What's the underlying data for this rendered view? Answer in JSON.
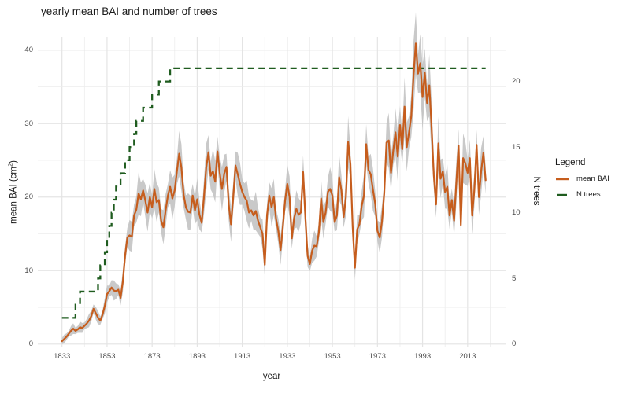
{
  "title": "yearly mean BAI and number of trees",
  "axes": {
    "x": {
      "label": "year",
      "tick_labels": [
        1833,
        1853,
        1873,
        1893,
        1913,
        1933,
        1953,
        1973,
        1993,
        2013
      ],
      "gridline_years": {
        "start": 1833,
        "end": 2023,
        "step": 10
      }
    },
    "y_left": {
      "label_prefix": "mean BAI (cm",
      "label_sup": "2",
      "label_suffix": ")",
      "tick_labels": [
        0,
        10,
        20,
        30,
        40
      ],
      "minor_gridlines": [
        5,
        15,
        25,
        35
      ]
    },
    "y_right": {
      "label": "N trees",
      "tick_labels": [
        0,
        5,
        10,
        15,
        20
      ]
    }
  },
  "legend": {
    "title": "Legend",
    "items": [
      {
        "label": "mean BAI",
        "color": "#C65D1D",
        "linestyle": "solid"
      },
      {
        "label": "N trees",
        "color": "#1F5C1F",
        "linestyle": "dashed"
      }
    ]
  },
  "colors": {
    "mean_bai_line": "#C65D1D",
    "n_trees_line": "#1F5C1F",
    "ribbon": "#BFBFBF",
    "grid_major": "#E4E4E4",
    "grid_minor": "#EDEDED",
    "tick_text": "#4d4d4d",
    "title_text": "#1a1a1a",
    "background": "#ffffff"
  },
  "chart_data": {
    "type": "line",
    "title": "yearly mean BAI and number of trees",
    "xlabel": "year",
    "ylabel_left": "mean BAI (cm2)",
    "ylabel_right": "N trees",
    "xlim": [
      1833,
      2021
    ],
    "ylim_left": [
      0,
      41
    ],
    "ylim_right": [
      0,
      21
    ],
    "grid": true,
    "legend_position": "right",
    "series": [
      {
        "name": "mean BAI",
        "axis": "left",
        "color": "#C65D1D",
        "linestyle": "solid",
        "ribbon": "gray confidence band around line",
        "start_year": 1833,
        "values": [
          0.4,
          0.7,
          1.0,
          1.4,
          1.8,
          2.1,
          1.8,
          2.0,
          2.3,
          2.2,
          2.5,
          2.8,
          3.2,
          3.8,
          4.8,
          4.2,
          3.6,
          3.2,
          4.0,
          5.2,
          6.8,
          7.2,
          7.7,
          7.3,
          7.2,
          7.4,
          6.3,
          8.5,
          12.0,
          14.5,
          14.8,
          14.6,
          17.5,
          18.3,
          20.5,
          19.7,
          20.9,
          19.5,
          17.9,
          20.0,
          18.6,
          21.1,
          19.3,
          19.6,
          16.8,
          15.9,
          18.2,
          20.2,
          21.4,
          19.8,
          20.9,
          23.5,
          25.9,
          24.0,
          20.3,
          18.6,
          18.0,
          17.9,
          20.2,
          18.2,
          19.7,
          17.6,
          16.5,
          20.0,
          24.0,
          26.1,
          22.9,
          23.5,
          22.1,
          26.2,
          23.3,
          21.1,
          23.2,
          24.1,
          19.0,
          16.3,
          20.0,
          24.3,
          23.1,
          21.8,
          20.7,
          20.0,
          19.5,
          17.9,
          18.2,
          17.5,
          18.1,
          16.8,
          15.9,
          15.0,
          10.8,
          17.6,
          20.2,
          18.6,
          20.0,
          17.0,
          15.4,
          12.8,
          15.9,
          19.5,
          21.8,
          20.0,
          14.4,
          17.1,
          18.4,
          17.6,
          17.9,
          23.4,
          17.3,
          12.0,
          10.9,
          12.7,
          13.4,
          13.3,
          15.2,
          19.8,
          16.6,
          17.9,
          20.7,
          21.1,
          20.2,
          16.6,
          17.5,
          22.7,
          20.9,
          17.3,
          20.0,
          27.5,
          24.5,
          15.9,
          10.4,
          15.6,
          16.3,
          18.8,
          20.2,
          27.2,
          23.7,
          23.1,
          21.0,
          19.1,
          15.4,
          14.5,
          16.7,
          20.5,
          27.4,
          27.7,
          23.3,
          26.3,
          28.8,
          25.5,
          29.8,
          26.5,
          32.3,
          26.8,
          28.8,
          31.0,
          36.5,
          40.9,
          36.8,
          38.2,
          33.6,
          36.9,
          32.8,
          35.2,
          29.6,
          23.0,
          19.0,
          27.3,
          22.5,
          23.5,
          20.7,
          21.4,
          17.5,
          19.6,
          16.8,
          22.0,
          27.0,
          16.2,
          25.3,
          24.6,
          23.3,
          25.3,
          17.5,
          21.0,
          27.1,
          20.0,
          23.5,
          26.0,
          22.3
        ]
      },
      {
        "name": "N trees",
        "axis": "right",
        "color": "#1F5C1F",
        "linestyle": "dashed",
        "step": true,
        "points": [
          [
            1833,
            2
          ],
          [
            1839,
            3
          ],
          [
            1841,
            4
          ],
          [
            1849,
            5
          ],
          [
            1850,
            6
          ],
          [
            1852,
            7
          ],
          [
            1853,
            8
          ],
          [
            1854,
            9
          ],
          [
            1855,
            10
          ],
          [
            1856,
            11
          ],
          [
            1857,
            12
          ],
          [
            1859,
            13
          ],
          [
            1861,
            14
          ],
          [
            1863,
            15
          ],
          [
            1865,
            16
          ],
          [
            1866,
            17
          ],
          [
            1869,
            18
          ],
          [
            1873,
            19
          ],
          [
            1876,
            20
          ],
          [
            1881,
            21
          ],
          [
            2021,
            21
          ]
        ]
      }
    ]
  }
}
